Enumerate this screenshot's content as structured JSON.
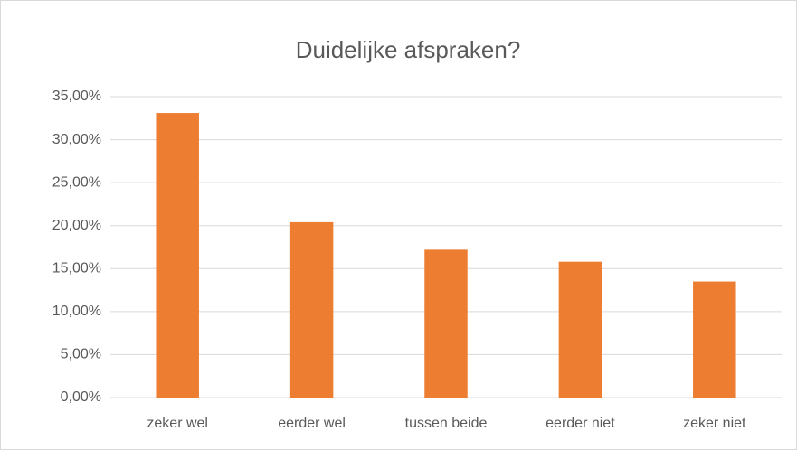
{
  "chart_data": {
    "type": "bar",
    "title": "Duidelijke afspraken?",
    "categories": [
      "zeker wel",
      "eerder wel",
      "tussen beide",
      "eerder niet",
      "zeker niet"
    ],
    "values": [
      33.1,
      20.4,
      17.2,
      15.8,
      13.5
    ],
    "color": "#ed7d31",
    "ylim": [
      0,
      35
    ],
    "yticks": [
      {
        "value": 0,
        "label": "0,00%"
      },
      {
        "value": 5,
        "label": "5,00%"
      },
      {
        "value": 10,
        "label": "10,00%"
      },
      {
        "value": 15,
        "label": "15,00%"
      },
      {
        "value": 20,
        "label": "20,00%"
      },
      {
        "value": 25,
        "label": "25,00%"
      },
      {
        "value": 30,
        "label": "30,00%"
      },
      {
        "value": 35,
        "label": "35,00%"
      }
    ],
    "grid": true
  }
}
